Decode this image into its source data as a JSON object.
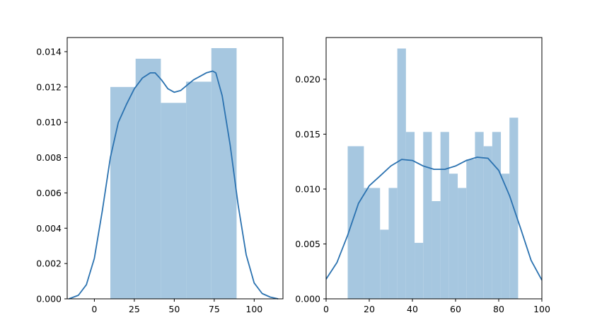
{
  "colors": {
    "bar_fill": "#a6c7e0",
    "kde_line": "#2b72b0",
    "axes": "#000000",
    "background": "#ffffff"
  },
  "chart_data": [
    {
      "type": "bar",
      "subtype": "histogram_with_kde",
      "title": "",
      "xlabel": "",
      "ylabel": "",
      "xlim": [
        -17,
        118
      ],
      "ylim": [
        0,
        0.0148
      ],
      "xticks": [
        0,
        25,
        50,
        75,
        100
      ],
      "yticks": [
        0,
        0.002,
        0.004,
        0.006,
        0.008,
        0.01,
        0.012,
        0.014
      ],
      "xtick_labels": [
        "0",
        "25",
        "50",
        "75",
        "100"
      ],
      "ytick_labels": [
        "0.000",
        "0.002",
        "0.004",
        "0.006",
        "0.008",
        "0.010",
        "0.012",
        "0.014"
      ],
      "grid": false,
      "bins": [
        {
          "x0": 10,
          "x1": 25.8,
          "value": 0.012
        },
        {
          "x0": 25.8,
          "x1": 41.6,
          "value": 0.0136
        },
        {
          "x0": 41.6,
          "x1": 57.4,
          "value": 0.0111
        },
        {
          "x0": 57.4,
          "x1": 73.2,
          "value": 0.0123
        },
        {
          "x0": 73.2,
          "x1": 89,
          "value": 0.0142
        }
      ],
      "kde": {
        "x": [
          -16,
          -10,
          -5,
          0,
          5,
          10,
          15,
          20,
          25,
          30,
          35,
          38,
          42,
          46,
          50,
          54,
          58,
          62,
          66,
          70,
          74,
          76,
          80,
          85,
          90,
          95,
          100,
          105,
          110,
          115
        ],
        "y": [
          0.0,
          0.0002,
          0.0008,
          0.0023,
          0.005,
          0.008,
          0.01,
          0.011,
          0.0119,
          0.0125,
          0.0128,
          0.0128,
          0.0124,
          0.0119,
          0.0117,
          0.0118,
          0.0121,
          0.0124,
          0.0126,
          0.0128,
          0.0129,
          0.0128,
          0.0115,
          0.0087,
          0.0053,
          0.0025,
          0.0009,
          0.0003,
          0.0001,
          0.0
        ]
      }
    },
    {
      "type": "bar",
      "subtype": "histogram_with_kde",
      "title": "",
      "xlabel": "",
      "ylabel": "",
      "xlim": [
        0,
        100
      ],
      "ylim": [
        0,
        0.0238
      ],
      "xticks": [
        0,
        20,
        40,
        60,
        80,
        100
      ],
      "yticks": [
        0,
        0.005,
        0.01,
        0.015,
        0.02
      ],
      "xtick_labels": [
        "0",
        "20",
        "40",
        "60",
        "80",
        "100"
      ],
      "ytick_labels": [
        "0.000",
        "0.005",
        "0.010",
        "0.015",
        "0.020"
      ],
      "grid": false,
      "bins": [
        {
          "x0": 10,
          "x1": 17.5,
          "value": 0.0139
        },
        {
          "x0": 17.5,
          "x1": 25,
          "value": 0.0101
        },
        {
          "x0": 25,
          "x1": 29,
          "value": 0.0063
        },
        {
          "x0": 29,
          "x1": 33,
          "value": 0.0101
        },
        {
          "x0": 33,
          "x1": 37,
          "value": 0.0228
        },
        {
          "x0": 37,
          "x1": 41,
          "value": 0.0152
        },
        {
          "x0": 41,
          "x1": 45,
          "value": 0.0051
        },
        {
          "x0": 45,
          "x1": 49,
          "value": 0.0152
        },
        {
          "x0": 49,
          "x1": 53,
          "value": 0.0089
        },
        {
          "x0": 53,
          "x1": 57,
          "value": 0.0152
        },
        {
          "x0": 57,
          "x1": 61,
          "value": 0.0114
        },
        {
          "x0": 61,
          "x1": 65,
          "value": 0.0101
        },
        {
          "x0": 65,
          "x1": 69,
          "value": 0.0127
        },
        {
          "x0": 69,
          "x1": 73,
          "value": 0.0152
        },
        {
          "x0": 73,
          "x1": 77,
          "value": 0.0139
        },
        {
          "x0": 77,
          "x1": 81,
          "value": 0.0152
        },
        {
          "x0": 81,
          "x1": 85,
          "value": 0.0114
        },
        {
          "x0": 85,
          "x1": 89,
          "value": 0.0165
        }
      ],
      "kde": {
        "x": [
          0,
          5,
          10,
          15,
          20,
          25,
          30,
          35,
          40,
          45,
          50,
          55,
          60,
          65,
          70,
          75,
          80,
          85,
          90,
          95,
          100
        ],
        "y": [
          0.0018,
          0.0033,
          0.0058,
          0.0087,
          0.0103,
          0.0112,
          0.0121,
          0.0127,
          0.0126,
          0.0121,
          0.0118,
          0.0118,
          0.0121,
          0.0126,
          0.0129,
          0.0128,
          0.0117,
          0.0094,
          0.0065,
          0.0035,
          0.0017
        ]
      }
    }
  ]
}
